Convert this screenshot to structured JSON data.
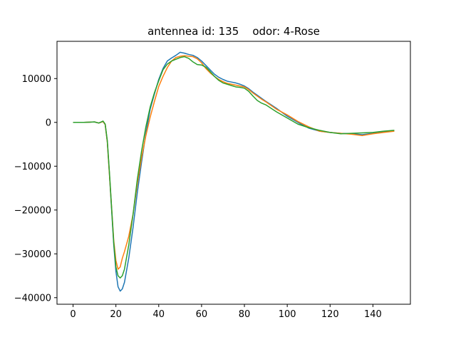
{
  "chart_data": {
    "type": "line",
    "title": "antennea id: 135    odor: 4-Rose",
    "xlabel": "",
    "ylabel": "",
    "xlim": [
      -7.5,
      157.5
    ],
    "ylim": [
      -41500,
      18500
    ],
    "xticks": [
      0,
      20,
      40,
      60,
      80,
      100,
      120,
      140
    ],
    "yticks": [
      -40000,
      -30000,
      -20000,
      -10000,
      0,
      10000
    ],
    "grid": false,
    "legend": "none",
    "series": [
      {
        "color": "#1f77b4",
        "x": [
          0,
          5,
          10,
          12,
          14,
          15,
          16,
          17,
          18,
          19,
          20,
          21,
          22,
          23,
          24,
          26,
          28,
          30,
          32,
          34,
          36,
          38,
          40,
          42,
          44,
          46,
          48,
          50,
          52,
          54,
          56,
          58,
          60,
          62,
          64,
          66,
          68,
          70,
          72,
          74,
          76,
          78,
          80,
          82,
          84,
          86,
          88,
          90,
          95,
          100,
          105,
          110,
          115,
          120,
          125,
          130,
          135,
          140,
          145,
          150
        ],
        "y": [
          0,
          0,
          100,
          -150,
          200,
          -500,
          -4500,
          -12000,
          -20000,
          -28000,
          -34000,
          -37500,
          -38500,
          -38000,
          -36500,
          -31000,
          -24000,
          -16000,
          -9000,
          -2500,
          3000,
          6500,
          9800,
          12300,
          14000,
          14700,
          15300,
          16000,
          15800,
          15500,
          15300,
          14800,
          14000,
          13000,
          12000,
          11000,
          10300,
          9800,
          9400,
          9200,
          9000,
          8700,
          8300,
          7700,
          6900,
          6200,
          5500,
          4800,
          3200,
          1400,
          0,
          -1300,
          -2000,
          -2300,
          -2500,
          -2600,
          -2800,
          -2500,
          -2200,
          -1900
        ]
      },
      {
        "color": "#ff7f0e",
        "x": [
          0,
          5,
          10,
          12,
          14,
          15,
          16,
          17,
          18,
          19,
          20,
          21,
          22,
          23,
          24,
          26,
          28,
          30,
          32,
          34,
          36,
          38,
          40,
          42,
          44,
          46,
          48,
          50,
          52,
          54,
          56,
          58,
          60,
          62,
          64,
          66,
          68,
          70,
          72,
          74,
          76,
          78,
          80,
          82,
          84,
          86,
          88,
          90,
          95,
          100,
          105,
          110,
          115,
          120,
          125,
          130,
          135,
          140,
          145,
          150
        ],
        "y": [
          0,
          0,
          100,
          -150,
          200,
          -500,
          -4500,
          -12000,
          -19500,
          -27000,
          -31500,
          -33500,
          -33000,
          -31000,
          -29500,
          -26000,
          -21000,
          -14000,
          -8000,
          -3000,
          1200,
          4800,
          8200,
          10500,
          12500,
          14000,
          14800,
          15100,
          15200,
          15100,
          15000,
          14500,
          13600,
          12300,
          11300,
          10500,
          9800,
          9300,
          8900,
          8700,
          8500,
          8300,
          8100,
          7500,
          6700,
          6000,
          5300,
          4700,
          3000,
          1700,
          200,
          -1000,
          -2000,
          -2300,
          -2500,
          -2700,
          -3000,
          -2600,
          -2300,
          -2000
        ]
      },
      {
        "color": "#2ca02c",
        "x": [
          0,
          5,
          10,
          12,
          14,
          15,
          16,
          17,
          18,
          19,
          20,
          21,
          22,
          23,
          24,
          26,
          28,
          30,
          32,
          34,
          36,
          38,
          40,
          42,
          44,
          46,
          48,
          50,
          52,
          54,
          56,
          58,
          60,
          62,
          64,
          66,
          68,
          70,
          72,
          74,
          76,
          78,
          80,
          82,
          84,
          86,
          88,
          90,
          95,
          100,
          105,
          110,
          115,
          120,
          125,
          130,
          135,
          140,
          145,
          150
        ],
        "y": [
          0,
          0,
          100,
          -150,
          300,
          -400,
          -4200,
          -11500,
          -19500,
          -27500,
          -33000,
          -35000,
          -35500,
          -35000,
          -33500,
          -28000,
          -21000,
          -13000,
          -6500,
          -1000,
          3500,
          6800,
          9500,
          12000,
          13300,
          14000,
          14400,
          14800,
          15000,
          14600,
          13800,
          13200,
          13100,
          12600,
          11600,
          10500,
          9600,
          9000,
          8700,
          8400,
          8100,
          8000,
          7800,
          7100,
          6000,
          5000,
          4400,
          4000,
          2400,
          1000,
          -400,
          -1200,
          -1800,
          -2300,
          -2600,
          -2500,
          -2400,
          -2300,
          -2000,
          -1800
        ]
      }
    ]
  }
}
